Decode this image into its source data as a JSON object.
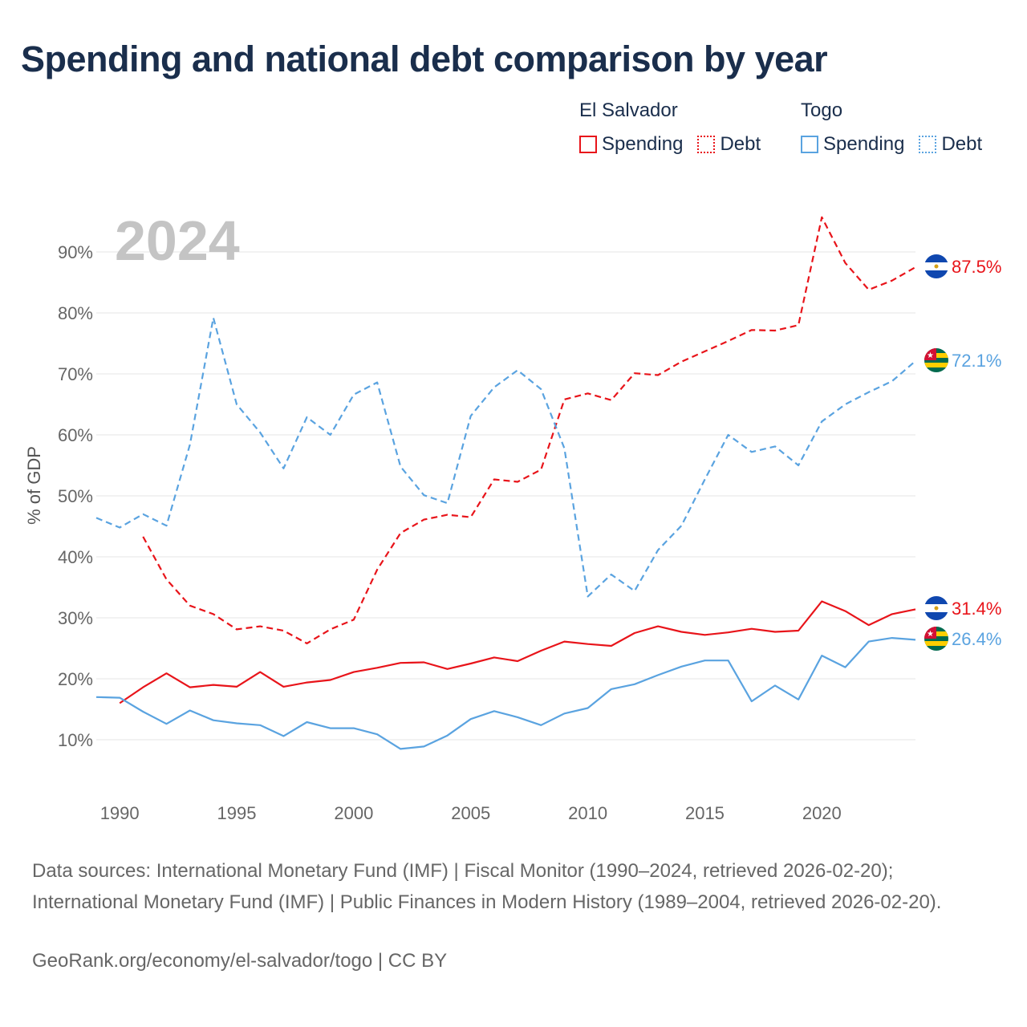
{
  "title": "Spending and national debt comparison by year",
  "legend": {
    "groups": [
      {
        "name": "El Salvador",
        "spending_label": "Spending",
        "debt_label": "Debt"
      },
      {
        "name": "Togo",
        "spending_label": "Spending",
        "debt_label": "Debt"
      }
    ]
  },
  "colors": {
    "el_salvador": "#e8141a",
    "togo": "#5aa3e0"
  },
  "footer": {
    "sources": "Data sources: International Monetary Fund (IMF) | Fiscal Monitor (1990–2024, retrieved 2026-02-20); International Monetary Fund (IMF) | Public Finances in Modern History (1989–2004, retrieved 2026-02-20).",
    "credit": "GeoRank.org/economy/el-salvador/togo | CC BY"
  },
  "chart_data": {
    "type": "line",
    "year_label": "2024",
    "ylabel": "% of GDP",
    "ylim": [
      0,
      100
    ],
    "xlim": [
      1989,
      2024
    ],
    "y_ticks": [
      10,
      20,
      30,
      40,
      50,
      60,
      70,
      80,
      90
    ],
    "y_tick_labels": [
      "10%",
      "20%",
      "30%",
      "40%",
      "50%",
      "60%",
      "70%",
      "80%",
      "90%"
    ],
    "x_ticks": [
      1990,
      1995,
      2000,
      2005,
      2010,
      2015,
      2020
    ],
    "x_tick_labels": [
      "1990",
      "1995",
      "2000",
      "2005",
      "2010",
      "2015",
      "2020"
    ],
    "end_labels": {
      "el_salvador_debt": "87.5%",
      "togo_debt": "72.1%",
      "el_salvador_spending": "31.4%",
      "togo_spending": "26.4%"
    },
    "series": [
      {
        "name": "El Salvador Debt",
        "country": "el_salvador",
        "style": "dashed",
        "x": [
          1991,
          1992,
          1993,
          1994,
          1995,
          1996,
          1997,
          1998,
          1999,
          2000,
          2001,
          2002,
          2003,
          2004,
          2005,
          2006,
          2007,
          2008,
          2009,
          2010,
          2011,
          2012,
          2013,
          2014,
          2015,
          2016,
          2017,
          2018,
          2019,
          2020,
          2021,
          2022,
          2023,
          2024
        ],
        "values": [
          43.3,
          36.3,
          32.0,
          30.6,
          28.1,
          28.6,
          27.9,
          25.8,
          28.1,
          29.7,
          37.9,
          43.9,
          46.1,
          46.9,
          46.5,
          52.7,
          52.3,
          54.3,
          65.8,
          66.8,
          65.7,
          70.1,
          69.8,
          72.0,
          73.7,
          75.4,
          77.2,
          77.1,
          78.0,
          95.7,
          88.2,
          83.8,
          85.3,
          87.5
        ]
      },
      {
        "name": "Togo Debt",
        "country": "togo",
        "style": "dashed",
        "x": [
          1989,
          1990,
          1991,
          1992,
          1993,
          1994,
          1995,
          1996,
          1997,
          1998,
          1999,
          2000,
          2001,
          2002,
          2003,
          2004,
          2005,
          2006,
          2007,
          2008,
          2009,
          2010,
          2011,
          2012,
          2013,
          2014,
          2015,
          2016,
          2017,
          2018,
          2019,
          2020,
          2021,
          2022,
          2023,
          2024
        ],
        "values": [
          46.4,
          44.8,
          47.0,
          45.1,
          58.4,
          79.2,
          65.0,
          60.4,
          54.5,
          62.9,
          60.0,
          66.6,
          68.6,
          54.8,
          50.1,
          48.8,
          63.1,
          67.8,
          70.6,
          67.5,
          57.8,
          33.5,
          37.1,
          34.4,
          41.1,
          45.1,
          52.7,
          60.0,
          57.2,
          58.1,
          55.0,
          62.2,
          65.0,
          67.0,
          68.8,
          72.1
        ]
      },
      {
        "name": "El Salvador Spending",
        "country": "el_salvador",
        "style": "solid",
        "x": [
          1990,
          1991,
          1992,
          1993,
          1994,
          1995,
          1996,
          1997,
          1998,
          1999,
          2000,
          2001,
          2002,
          2003,
          2004,
          2005,
          2006,
          2007,
          2008,
          2009,
          2010,
          2011,
          2012,
          2013,
          2014,
          2015,
          2016,
          2017,
          2018,
          2019,
          2020,
          2021,
          2022,
          2023,
          2024
        ],
        "values": [
          16.0,
          18.6,
          20.9,
          18.6,
          19.0,
          18.7,
          21.1,
          18.7,
          19.4,
          19.8,
          21.1,
          21.8,
          22.6,
          22.7,
          21.6,
          22.5,
          23.5,
          22.9,
          24.6,
          26.1,
          25.7,
          25.4,
          27.5,
          28.6,
          27.7,
          27.2,
          27.6,
          28.2,
          27.7,
          27.9,
          32.7,
          31.1,
          28.8,
          30.6,
          31.4
        ]
      },
      {
        "name": "Togo Spending",
        "country": "togo",
        "style": "solid",
        "x": [
          1989,
          1990,
          1991,
          1992,
          1993,
          1994,
          1995,
          1996,
          1997,
          1998,
          1999,
          2000,
          2001,
          2002,
          2003,
          2004,
          2005,
          2006,
          2007,
          2008,
          2009,
          2010,
          2011,
          2012,
          2013,
          2014,
          2015,
          2016,
          2017,
          2018,
          2019,
          2020,
          2021,
          2022,
          2023,
          2024
        ],
        "values": [
          17.0,
          16.9,
          14.6,
          12.6,
          14.8,
          13.2,
          12.7,
          12.4,
          10.6,
          12.9,
          11.9,
          11.9,
          10.9,
          8.5,
          8.9,
          10.7,
          13.4,
          14.7,
          13.7,
          12.4,
          14.3,
          15.2,
          18.3,
          19.1,
          20.6,
          22.0,
          23.0,
          23.0,
          16.3,
          18.9,
          16.6,
          23.8,
          21.9,
          26.1,
          26.7,
          26.4
        ]
      }
    ]
  }
}
